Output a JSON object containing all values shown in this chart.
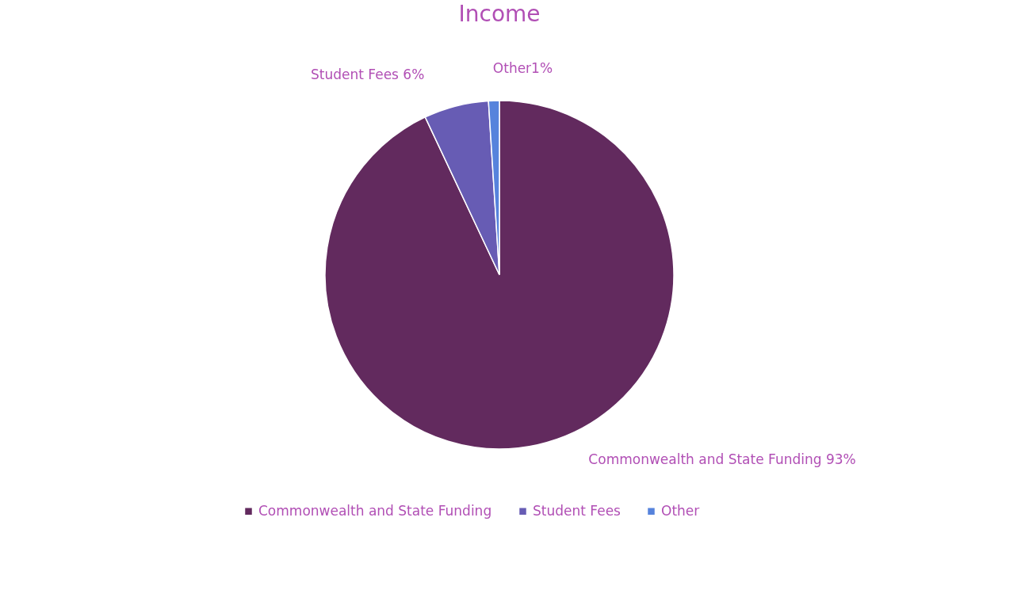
{
  "chart_data": {
    "type": "pie",
    "title": "Income",
    "categories": [
      "Commonwealth and State Funding",
      "Student Fees",
      "Other"
    ],
    "values": [
      93,
      6,
      1
    ],
    "colors": [
      "#622a5e",
      "#675cb4",
      "#5683dc"
    ],
    "value_labels": [
      "Commonwealth and State Funding 93%",
      "Student Fees 6%",
      "Other1%"
    ],
    "legend": "bottom"
  }
}
